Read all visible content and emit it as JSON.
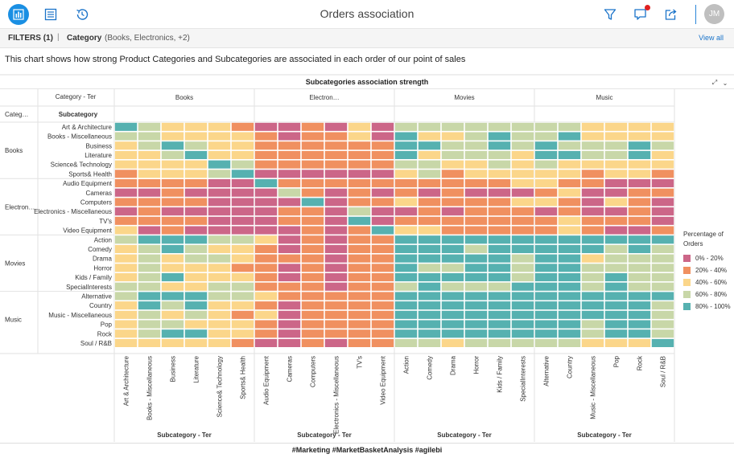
{
  "app": {
    "title": "Orders association",
    "avatar_initials": "JM",
    "accent_color": "#1a8fe3"
  },
  "filters": {
    "count_label": "FILTERS (1)",
    "category_label": "Category",
    "category_value": "(Books, Electronics, +2)",
    "view_all": "View all"
  },
  "description": "This chart shows how strong Product Categories and Subcategories are associated in each order of our point of sales",
  "footer": "#Marketing #MarketBasketAnalysis #agilebi",
  "chart_data": {
    "type": "heatmap",
    "title": "Subcategories association strength",
    "header_labels": {
      "column_category": "Category - Ter",
      "row_category": "Categ…",
      "row_subcategory": "Subcategory"
    },
    "x_axis_label": "Subcategory - Ter",
    "categories": [
      {
        "name": "Books",
        "short": "Books",
        "subcategories": [
          "Art & Architecture",
          "Books - Miscellaneous",
          "Business",
          "Literature",
          "Science& Technology",
          "Sports& Health"
        ]
      },
      {
        "name": "Electronics",
        "short": "Electron…",
        "subcategories": [
          "Audio Equipment",
          "Cameras",
          "Computers",
          "Electronics - Miscellaneous",
          "TV's",
          "Video Equipment"
        ]
      },
      {
        "name": "Movies",
        "short": "Movies",
        "subcategories": [
          "Action",
          "Comedy",
          "Drama",
          "Horror",
          "Kids / Family",
          "SpecialInterests"
        ]
      },
      {
        "name": "Music",
        "short": "Music",
        "subcategories": [
          "Alternative",
          "Country",
          "Music - Miscellaneous",
          "Pop",
          "Rock",
          "Soul / R&B"
        ]
      }
    ],
    "color_bins": [
      {
        "label": "0% - 20%",
        "color": "#cc6688"
      },
      {
        "label": "20% - 40%",
        "color": "#f09060"
      },
      {
        "label": "40% - 60%",
        "color": "#fbd68a"
      },
      {
        "label": "60% - 80%",
        "color": "#c8d7a8"
      },
      {
        "label": "80% - 100%",
        "color": "#56b1b0"
      }
    ],
    "legend_title": "Percentage of Orders",
    "legend_position": "right",
    "matrix_bins": [
      [
        4,
        3,
        2,
        2,
        2,
        1,
        0,
        0,
        1,
        0,
        2,
        0,
        3,
        3,
        3,
        3,
        3,
        3,
        3,
        3,
        2,
        2,
        2,
        2
      ],
      [
        3,
        3,
        2,
        2,
        2,
        2,
        1,
        0,
        1,
        1,
        2,
        0,
        4,
        2,
        2,
        3,
        4,
        3,
        3,
        4,
        2,
        2,
        2,
        2
      ],
      [
        2,
        3,
        4,
        3,
        2,
        2,
        1,
        1,
        1,
        1,
        1,
        1,
        4,
        4,
        3,
        3,
        4,
        3,
        4,
        3,
        3,
        3,
        4,
        3
      ],
      [
        2,
        2,
        3,
        4,
        2,
        2,
        1,
        1,
        1,
        1,
        1,
        1,
        4,
        2,
        3,
        3,
        3,
        2,
        4,
        4,
        3,
        3,
        4,
        2
      ],
      [
        2,
        2,
        2,
        2,
        4,
        3,
        1,
        1,
        1,
        1,
        1,
        1,
        3,
        3,
        2,
        2,
        3,
        2,
        3,
        2,
        2,
        2,
        2,
        2
      ],
      [
        1,
        2,
        2,
        2,
        3,
        4,
        0,
        0,
        0,
        0,
        0,
        0,
        2,
        3,
        1,
        2,
        2,
        2,
        2,
        2,
        1,
        2,
        2,
        1
      ],
      [
        1,
        1,
        1,
        1,
        0,
        0,
        4,
        1,
        1,
        1,
        1,
        1,
        1,
        1,
        1,
        1,
        1,
        2,
        2,
        1,
        1,
        0,
        0,
        0
      ],
      [
        0,
        0,
        1,
        0,
        0,
        0,
        0,
        3,
        1,
        0,
        1,
        0,
        1,
        0,
        1,
        0,
        0,
        0,
        1,
        2,
        0,
        0,
        1,
        1
      ],
      [
        1,
        1,
        1,
        1,
        0,
        0,
        0,
        0,
        4,
        0,
        1,
        1,
        2,
        1,
        1,
        1,
        1,
        2,
        2,
        1,
        0,
        2,
        1,
        0
      ],
      [
        0,
        1,
        0,
        0,
        0,
        0,
        0,
        1,
        1,
        0,
        3,
        0,
        0,
        1,
        0,
        1,
        1,
        1,
        0,
        1,
        0,
        0,
        1,
        0
      ],
      [
        1,
        1,
        1,
        1,
        0,
        0,
        0,
        1,
        1,
        0,
        4,
        0,
        1,
        1,
        1,
        1,
        1,
        1,
        1,
        2,
        1,
        1,
        1,
        0
      ],
      [
        2,
        0,
        1,
        0,
        0,
        0,
        0,
        0,
        1,
        0,
        1,
        4,
        2,
        2,
        1,
        1,
        1,
        1,
        1,
        2,
        1,
        0,
        0,
        1
      ],
      [
        3,
        4,
        4,
        4,
        3,
        3,
        2,
        0,
        1,
        0,
        1,
        1,
        4,
        4,
        4,
        4,
        4,
        4,
        4,
        4,
        4,
        4,
        4,
        4
      ],
      [
        2,
        3,
        4,
        3,
        2,
        2,
        1,
        0,
        1,
        0,
        1,
        1,
        4,
        4,
        4,
        3,
        4,
        4,
        4,
        4,
        4,
        3,
        4,
        3
      ],
      [
        2,
        3,
        2,
        3,
        3,
        2,
        1,
        1,
        1,
        0,
        1,
        1,
        4,
        4,
        4,
        4,
        4,
        3,
        4,
        4,
        2,
        3,
        3,
        3
      ],
      [
        2,
        3,
        2,
        2,
        2,
        1,
        1,
        0,
        1,
        0,
        1,
        1,
        4,
        3,
        3,
        4,
        4,
        3,
        4,
        4,
        3,
        3,
        3,
        3
      ],
      [
        2,
        3,
        4,
        2,
        2,
        2,
        1,
        0,
        1,
        0,
        1,
        1,
        4,
        4,
        4,
        4,
        4,
        3,
        4,
        4,
        3,
        4,
        3,
        3
      ],
      [
        3,
        3,
        2,
        2,
        3,
        3,
        1,
        1,
        1,
        0,
        1,
        1,
        3,
        4,
        3,
        3,
        3,
        4,
        4,
        4,
        3,
        4,
        3,
        3
      ],
      [
        3,
        4,
        4,
        4,
        3,
        3,
        2,
        1,
        1,
        1,
        1,
        1,
        4,
        4,
        4,
        4,
        4,
        4,
        4,
        4,
        4,
        4,
        4,
        4
      ],
      [
        2,
        4,
        3,
        4,
        2,
        2,
        1,
        0,
        1,
        1,
        1,
        1,
        4,
        4,
        4,
        4,
        4,
        4,
        4,
        4,
        4,
        4,
        4,
        3
      ],
      [
        2,
        3,
        2,
        3,
        2,
        1,
        2,
        0,
        1,
        1,
        1,
        1,
        4,
        4,
        4,
        4,
        4,
        4,
        4,
        4,
        4,
        4,
        4,
        3
      ],
      [
        2,
        3,
        3,
        2,
        2,
        2,
        1,
        0,
        1,
        1,
        1,
        1,
        4,
        4,
        4,
        4,
        4,
        4,
        4,
        4,
        3,
        4,
        4,
        3
      ],
      [
        2,
        3,
        4,
        4,
        2,
        2,
        1,
        0,
        1,
        1,
        1,
        1,
        4,
        4,
        4,
        4,
        4,
        4,
        4,
        4,
        3,
        4,
        4,
        3
      ],
      [
        2,
        2,
        2,
        2,
        2,
        1,
        0,
        0,
        1,
        0,
        1,
        1,
        3,
        3,
        2,
        3,
        3,
        3,
        3,
        3,
        2,
        2,
        2,
        4
      ]
    ]
  }
}
